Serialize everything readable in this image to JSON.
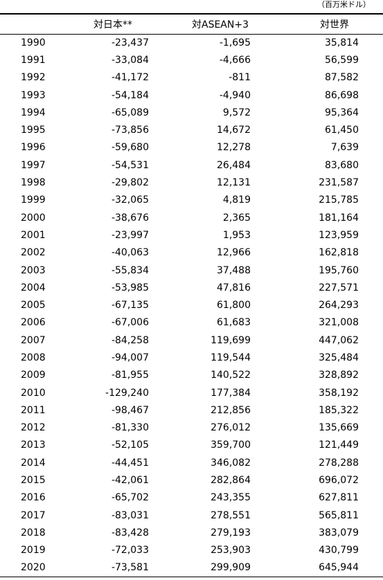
{
  "unit_note": "（百万米ドル）",
  "columns": [
    "",
    "対日本**",
    "対ASEAN+3",
    "対世界"
  ],
  "rows": [
    [
      "1990",
      "-23,437",
      "-1,695",
      "35,814"
    ],
    [
      "1991",
      "-33,084",
      "-4,666",
      "56,599"
    ],
    [
      "1992",
      "-41,172",
      "-811",
      "87,582"
    ],
    [
      "1993",
      "-54,184",
      "-4,940",
      "86,698"
    ],
    [
      "1994",
      "-65,089",
      "9,572",
      "95,364"
    ],
    [
      "1995",
      "-73,856",
      "14,672",
      "61,450"
    ],
    [
      "1996",
      "-59,680",
      "12,278",
      "7,639"
    ],
    [
      "1997",
      "-54,531",
      "26,484",
      "83,680"
    ],
    [
      "1998",
      "-29,802",
      "12,131",
      "231,587"
    ],
    [
      "1999",
      "-32,065",
      "4,819",
      "215,785"
    ],
    [
      "2000",
      "-38,676",
      "2,365",
      "181,164"
    ],
    [
      "2001",
      "-23,997",
      "1,953",
      "123,959"
    ],
    [
      "2002",
      "-40,063",
      "12,966",
      "162,818"
    ],
    [
      "2003",
      "-55,834",
      "37,488",
      "195,760"
    ],
    [
      "2004",
      "-53,985",
      "47,816",
      "227,571"
    ],
    [
      "2005",
      "-67,135",
      "61,800",
      "264,293"
    ],
    [
      "2006",
      "-67,006",
      "61,683",
      "321,008"
    ],
    [
      "2007",
      "-84,258",
      "119,699",
      "447,062"
    ],
    [
      "2008",
      "-94,007",
      "119,544",
      "325,484"
    ],
    [
      "2009",
      "-81,955",
      "140,522",
      "328,892"
    ],
    [
      "2010",
      "-129,240",
      "177,384",
      "358,192"
    ],
    [
      "2011",
      "-98,467",
      "212,856",
      "185,322"
    ],
    [
      "2012",
      "-81,330",
      "276,012",
      "135,669"
    ],
    [
      "2013",
      "-52,105",
      "359,700",
      "121,449"
    ],
    [
      "2014",
      "-44,451",
      "346,082",
      "278,288"
    ],
    [
      "2015",
      "-42,061",
      "282,864",
      "696,072"
    ],
    [
      "2016",
      "-65,702",
      "243,355",
      "627,811"
    ],
    [
      "2017",
      "-83,031",
      "278,551",
      "565,811"
    ],
    [
      "2018",
      "-83,428",
      "279,193",
      "383,079"
    ],
    [
      "2019",
      "-72,033",
      "253,903",
      "430,799"
    ],
    [
      "2020",
      "-73,581",
      "299,909",
      "645,944"
    ]
  ]
}
